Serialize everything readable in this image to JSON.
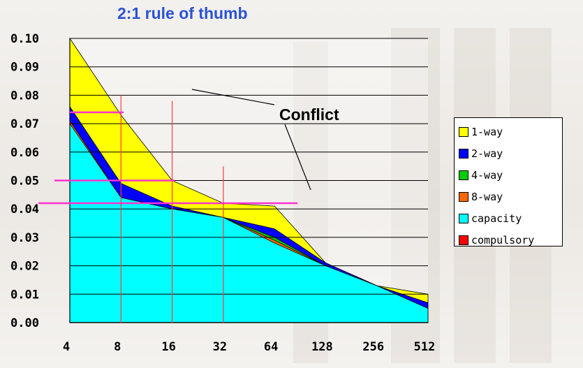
{
  "chart_data": {
    "type": "area",
    "title": "2:1 rule of thumb",
    "x": [
      "4",
      "8",
      "16",
      "32",
      "64",
      "128",
      "256",
      "512"
    ],
    "ylim": [
      0,
      0.1
    ],
    "yticks": [
      "0.00",
      "0.01",
      "0.02",
      "0.03",
      "0.04",
      "0.05",
      "0.06",
      "0.07",
      "0.08",
      "0.09",
      "0.10"
    ],
    "grid": "horizontal",
    "legend_position": "right",
    "series": [
      {
        "name": "compulsory",
        "color": "#ff0000",
        "values": [
          0.0001,
          0.0001,
          0.0001,
          0.0001,
          0.0001,
          0.0001,
          0.0001,
          0.0001
        ]
      },
      {
        "name": "capacity",
        "color": "#00ffff",
        "values": [
          0.07,
          0.044,
          0.04,
          0.037,
          0.028,
          0.02,
          0.013,
          0.005
        ]
      },
      {
        "name": "8-way",
        "color": "#ff6600",
        "values": [
          0.071,
          0.044,
          0.04,
          0.037,
          0.029,
          0.02,
          0.013,
          0.005
        ]
      },
      {
        "name": "4-way",
        "color": "#00cc00",
        "values": [
          0.071,
          0.044,
          0.04,
          0.037,
          0.03,
          0.02,
          0.013,
          0.005
        ]
      },
      {
        "name": "2-way",
        "color": "#0000ff",
        "values": [
          0.076,
          0.049,
          0.041,
          0.037,
          0.033,
          0.021,
          0.013,
          0.007
        ]
      },
      {
        "name": "1-way",
        "color": "#ffff00",
        "values": [
          0.1,
          0.073,
          0.05,
          0.042,
          0.041,
          0.021,
          0.013,
          0.01
        ]
      }
    ],
    "annotations": {
      "conflict_label": "Conflict"
    }
  }
}
